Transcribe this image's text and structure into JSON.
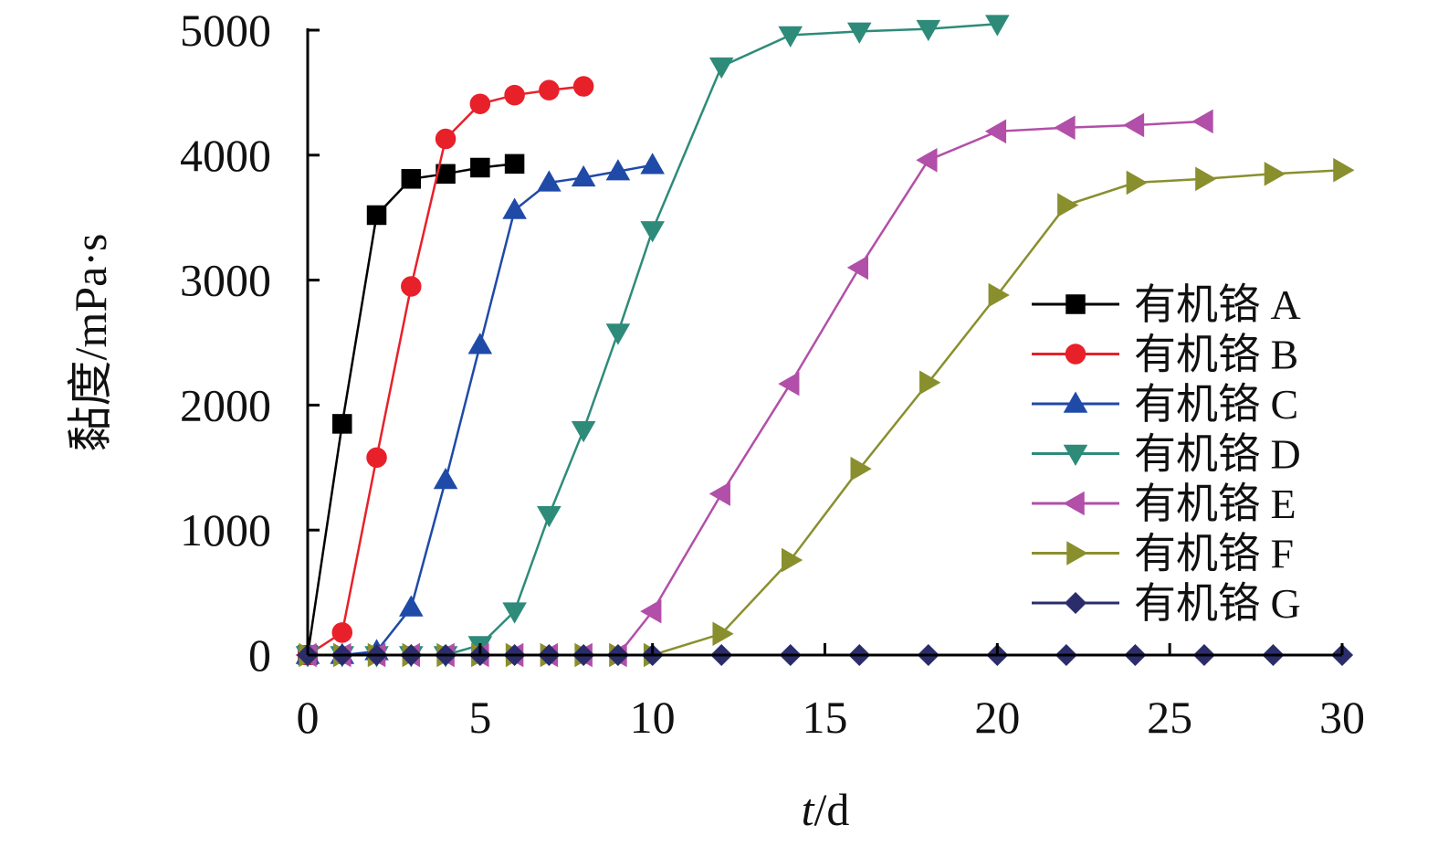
{
  "chart_data": {
    "type": "line",
    "xlabel": {
      "italic": "t",
      "rest": "/d"
    },
    "ylabel": "黏度/mPa·s",
    "xlim": [
      0,
      30
    ],
    "ylim": [
      0,
      5000
    ],
    "x_ticks": [
      0,
      5,
      10,
      15,
      20,
      25,
      30
    ],
    "y_ticks": [
      0,
      1000,
      2000,
      3000,
      4000,
      5000
    ],
    "grid": false,
    "legend_position": "right",
    "series": [
      {
        "name": "有机铬 A",
        "color": "#000000",
        "marker": "square",
        "x": [
          0,
          1,
          2,
          3,
          4,
          5,
          6
        ],
        "y": [
          0,
          1850,
          3520,
          3810,
          3850,
          3900,
          3930
        ]
      },
      {
        "name": "有机铬 B",
        "color": "#e8202a",
        "marker": "circle",
        "x": [
          0,
          1,
          2,
          3,
          4,
          5,
          6,
          7,
          8
        ],
        "y": [
          0,
          180,
          1580,
          2950,
          4130,
          4410,
          4480,
          4520,
          4550
        ]
      },
      {
        "name": "有机铬 C",
        "color": "#1f4aa8",
        "marker": "triangle-up",
        "x": [
          0,
          1,
          2,
          3,
          4,
          5,
          6,
          7,
          8,
          9,
          10
        ],
        "y": [
          0,
          0,
          30,
          380,
          1400,
          2480,
          3560,
          3780,
          3820,
          3870,
          3920
        ]
      },
      {
        "name": "有机铬 D",
        "color": "#2e8b7a",
        "marker": "triangle-down",
        "x": [
          0,
          1,
          2,
          3,
          4,
          5,
          6,
          7,
          8,
          9,
          10,
          12,
          14,
          16,
          18,
          20
        ],
        "y": [
          0,
          0,
          0,
          0,
          0,
          80,
          350,
          1120,
          1800,
          2580,
          3400,
          4710,
          4960,
          4990,
          5010,
          5050
        ]
      },
      {
        "name": "有机铬 E",
        "color": "#b24fa8",
        "marker": "triangle-left",
        "x": [
          0,
          1,
          2,
          3,
          4,
          5,
          6,
          7,
          8,
          9,
          10,
          12,
          14,
          16,
          18,
          20,
          22,
          24,
          26
        ],
        "y": [
          0,
          0,
          0,
          0,
          0,
          0,
          0,
          0,
          0,
          0,
          350,
          1290,
          2170,
          3100,
          3960,
          4190,
          4220,
          4240,
          4270
        ]
      },
      {
        "name": "有机铬 F",
        "color": "#8a8f2e",
        "marker": "triangle-right",
        "x": [
          0,
          1,
          2,
          3,
          4,
          5,
          6,
          7,
          8,
          9,
          10,
          12,
          14,
          16,
          18,
          20,
          22,
          24,
          26,
          28,
          30
        ],
        "y": [
          0,
          0,
          0,
          0,
          0,
          0,
          0,
          0,
          0,
          0,
          0,
          170,
          760,
          1490,
          2180,
          2880,
          3600,
          3780,
          3810,
          3850,
          3880
        ]
      },
      {
        "name": "有机铬 G",
        "color": "#2b2d6b",
        "marker": "diamond",
        "x": [
          0,
          1,
          2,
          3,
          4,
          5,
          6,
          7,
          8,
          9,
          10,
          12,
          14,
          16,
          18,
          20,
          22,
          24,
          26,
          28,
          30
        ],
        "y": [
          0,
          0,
          0,
          0,
          0,
          0,
          0,
          0,
          0,
          0,
          0,
          0,
          0,
          0,
          0,
          0,
          0,
          0,
          0,
          0,
          0
        ]
      }
    ]
  }
}
